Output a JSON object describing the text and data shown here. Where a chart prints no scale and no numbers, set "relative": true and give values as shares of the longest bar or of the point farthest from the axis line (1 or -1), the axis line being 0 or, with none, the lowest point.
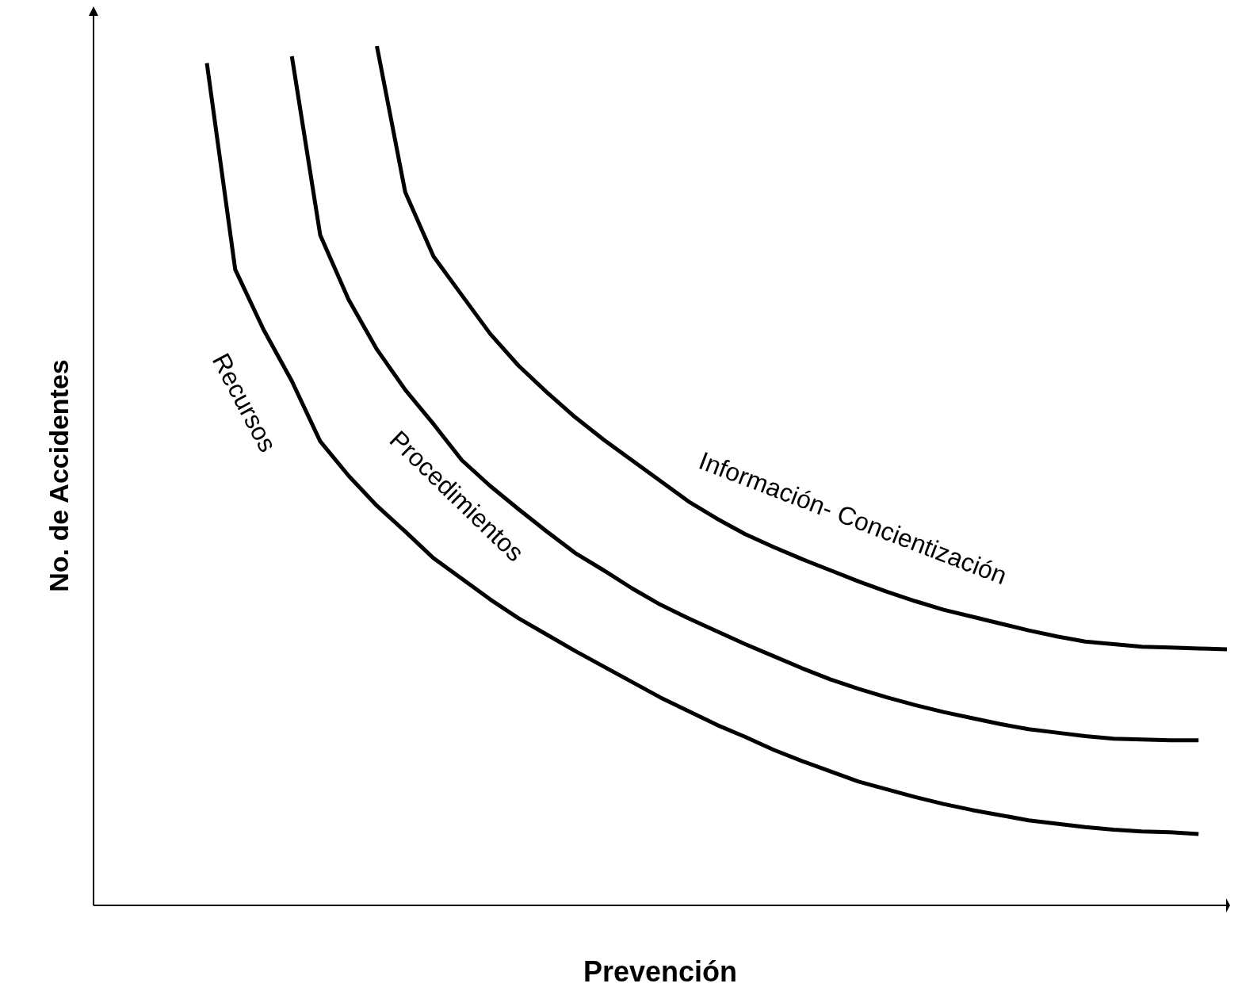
{
  "chart_data": {
    "type": "line",
    "relative": true,
    "xlabel": "Prevención",
    "ylabel": "No. de Accidentes",
    "categories": [
      null,
      null,
      null,
      null,
      null,
      null,
      null,
      null,
      null,
      null,
      null,
      null,
      null,
      null,
      null,
      null,
      null,
      null,
      null,
      null,
      null,
      null,
      null,
      null,
      null,
      null,
      null,
      null,
      null,
      null,
      null,
      null,
      null,
      null,
      null,
      null,
      null
    ],
    "series": [
      {
        "name": "Recursos",
        "color": "#000000",
        "values": [
          0.98,
          0.74,
          0.67,
          0.61,
          0.54,
          0.5,
          0.465,
          0.435,
          0.404,
          0.38,
          0.356,
          0.334,
          0.315,
          0.296,
          0.278,
          0.26,
          0.242,
          0.226,
          0.21,
          0.196,
          0.181,
          0.168,
          0.156,
          0.144,
          0.135,
          0.126,
          0.118,
          0.111,
          0.105,
          0.099,
          0.095,
          0.091,
          0.088,
          0.086,
          0.085,
          0.083,
          null
        ]
      },
      {
        "name": "Procedimientos",
        "color": "#000000",
        "values": [
          null,
          null,
          null,
          0.988,
          0.78,
          0.705,
          0.647,
          0.6,
          0.56,
          0.518,
          0.488,
          0.461,
          0.435,
          0.41,
          0.39,
          0.369,
          0.35,
          0.334,
          0.319,
          0.304,
          0.29,
          0.276,
          0.263,
          0.252,
          0.242,
          0.233,
          0.225,
          0.218,
          0.211,
          0.205,
          0.201,
          0.197,
          0.194,
          0.193,
          0.192,
          0.192,
          null
        ]
      },
      {
        "name": "Información- Concientización",
        "color": "#000000",
        "values": [
          null,
          null,
          null,
          null,
          null,
          null,
          1.0,
          0.83,
          0.755,
          0.71,
          0.665,
          0.628,
          0.597,
          0.568,
          0.542,
          0.518,
          0.494,
          0.47,
          0.45,
          0.432,
          0.417,
          0.403,
          0.39,
          0.377,
          0.365,
          0.354,
          0.344,
          0.336,
          0.328,
          0.32,
          0.313,
          0.307,
          0.304,
          0.301,
          0.3,
          0.299,
          0.298
        ]
      }
    ]
  }
}
